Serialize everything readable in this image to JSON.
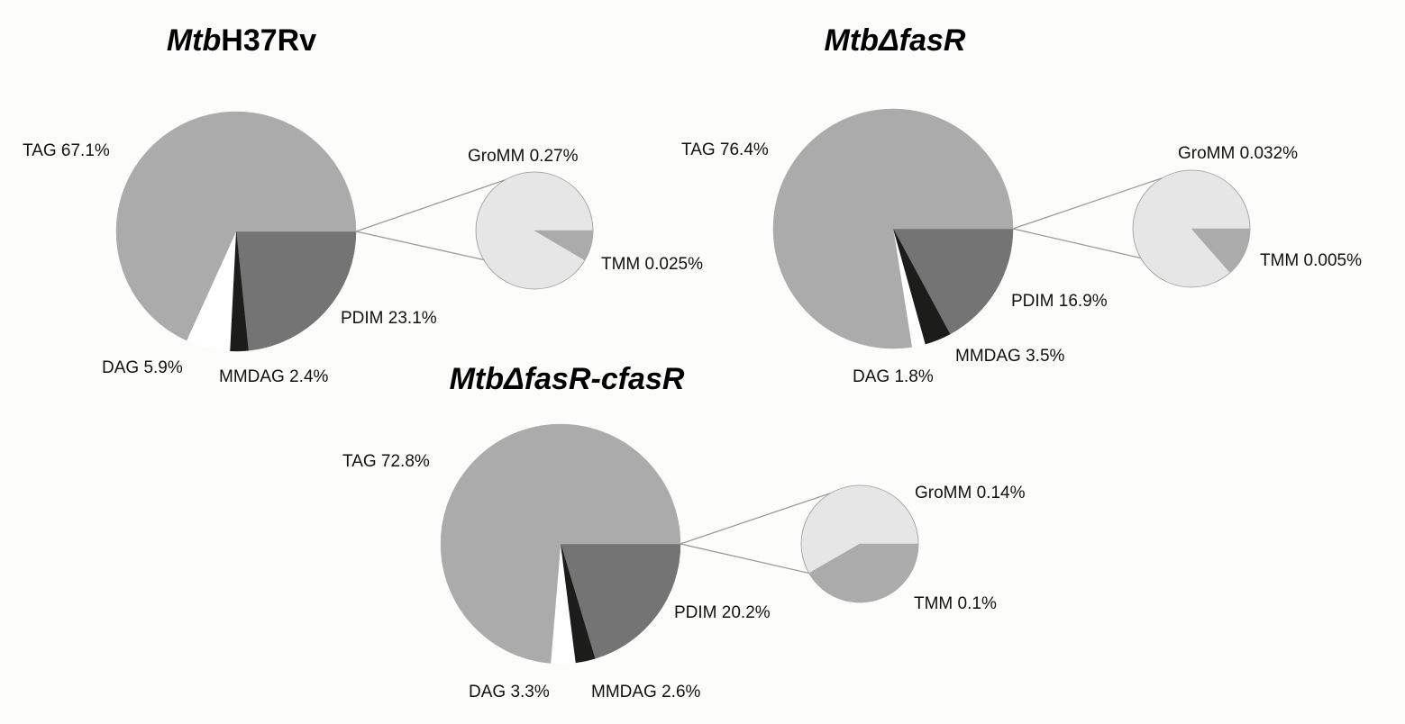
{
  "chart_data": [
    {
      "type": "pie",
      "title_parts": [
        {
          "text": "Mtb",
          "italic": true
        },
        {
          "text": "H37Rv",
          "italic": false
        }
      ],
      "slices": [
        {
          "name": "TAG",
          "value": 67.1,
          "label": "TAG 67.1%",
          "color": "#ababab"
        },
        {
          "name": "DAG",
          "value": 5.9,
          "label": "DAG 5.9%",
          "color": "#ffffff"
        },
        {
          "name": "MMDAG",
          "value": 2.4,
          "label": "MMDAG 2.4%",
          "color": "#1c1c1a"
        },
        {
          "name": "PDIM",
          "value": 23.1,
          "label": "PDIM 23.1%",
          "color": "#737473"
        }
      ],
      "secondary_pie": [
        {
          "name": "GroMM",
          "value": 0.27,
          "label": "GroMM 0.27%",
          "color": "#e6e6e6"
        },
        {
          "name": "TMM",
          "value": 0.025,
          "label": "TMM 0.025%",
          "color": "#ababab"
        }
      ]
    },
    {
      "type": "pie",
      "title_parts": [
        {
          "text": "MtbΔfasR",
          "italic": true
        }
      ],
      "slices": [
        {
          "name": "TAG",
          "value": 76.4,
          "label": "TAG 76.4%",
          "color": "#ababab"
        },
        {
          "name": "DAG",
          "value": 1.8,
          "label": "DAG 1.8%",
          "color": "#ffffff"
        },
        {
          "name": "MMDAG",
          "value": 3.5,
          "label": "MMDAG 3.5%",
          "color": "#1c1c1a"
        },
        {
          "name": "PDIM",
          "value": 16.9,
          "label": "PDIM 16.9%",
          "color": "#737473"
        }
      ],
      "secondary_pie": [
        {
          "name": "GroMM",
          "value": 0.032,
          "label": "GroMM 0.032%",
          "color": "#e6e6e6"
        },
        {
          "name": "TMM",
          "value": 0.005,
          "label": "TMM 0.005%",
          "color": "#ababab"
        }
      ]
    },
    {
      "type": "pie",
      "title_parts": [
        {
          "text": "MtbΔfasR-cfasR",
          "italic": true
        }
      ],
      "slices": [
        {
          "name": "TAG",
          "value": 72.8,
          "label": "TAG 72.8%",
          "color": "#ababab"
        },
        {
          "name": "DAG",
          "value": 3.3,
          "label": "DAG 3.3%",
          "color": "#ffffff"
        },
        {
          "name": "MMDAG",
          "value": 2.6,
          "label": "MMDAG 2.6%",
          "color": "#1c1c1a"
        },
        {
          "name": "PDIM",
          "value": 20.2,
          "label": "PDIM 20.2%",
          "color": "#737473"
        }
      ],
      "secondary_pie": [
        {
          "name": "GroMM",
          "value": 0.14,
          "label": "GroMM 0.14%",
          "color": "#e6e6e6"
        },
        {
          "name": "TMM",
          "value": 0.1,
          "label": "TMM 0.1%",
          "color": "#ababab"
        }
      ]
    }
  ]
}
